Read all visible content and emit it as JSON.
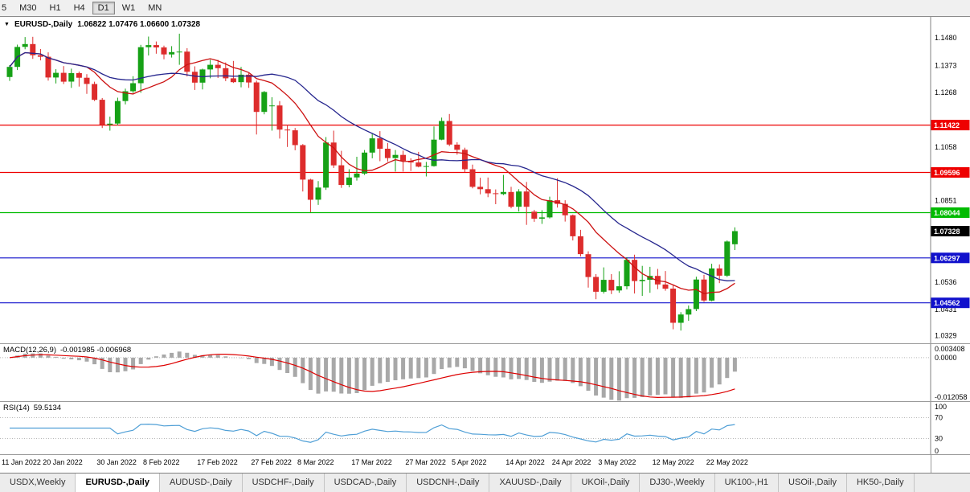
{
  "toolbar": {
    "timeframes": [
      {
        "label": "5",
        "active": false
      },
      {
        "label": "M30",
        "active": false
      },
      {
        "label": "H1",
        "active": false
      },
      {
        "label": "H4",
        "active": false
      },
      {
        "label": "D1",
        "active": true
      },
      {
        "label": "W1",
        "active": false
      },
      {
        "label": "MN",
        "active": false
      }
    ]
  },
  "chart": {
    "symbol_label": "EURUSD-,Daily",
    "ohlc_label": "1.06822 1.07476 1.06600 1.07328"
  },
  "indicators": {
    "macd": {
      "label": "MACD(12,26,9)",
      "values_label": "-0.001985 -0.006968"
    },
    "rsi": {
      "label": "RSI(14)",
      "value_label": "59.5134"
    }
  },
  "tabs": [
    {
      "label": "USDX,Weekly",
      "active": false
    },
    {
      "label": "EURUSD-,Daily",
      "active": true
    },
    {
      "label": "AUDUSD-,Daily",
      "active": false
    },
    {
      "label": "USDCHF-,Daily",
      "active": false
    },
    {
      "label": "USDCAD-,Daily",
      "active": false
    },
    {
      "label": "USDCNH-,Daily",
      "active": false
    },
    {
      "label": "XAUUSD-,Daily",
      "active": false
    },
    {
      "label": "UKOil-,Daily",
      "active": false
    },
    {
      "label": "DJ30-,Weekly",
      "active": false
    },
    {
      "label": "UK100-,H1",
      "active": false
    },
    {
      "label": "USOil-,Daily",
      "active": false
    },
    {
      "label": "HK50-,Daily",
      "active": false
    }
  ],
  "chart_data": {
    "type": "candlestick",
    "symbol": "EURUSD-",
    "timeframe": "Daily",
    "current_ohlc": {
      "open": 1.06822,
      "high": 1.07476,
      "low": 1.066,
      "close": 1.07328
    },
    "colors": {
      "bull": "#16a116",
      "bear": "#dd2c2c"
    },
    "y_axis": {
      "top": 1.156,
      "bottom": 1.03,
      "ticks": [
        {
          "value": 1.148,
          "label": "1.1480"
        },
        {
          "value": 1.1373,
          "label": "1.1373"
        },
        {
          "value": 1.1268,
          "label": "1.1268"
        },
        {
          "value": 1.1058,
          "label": "1.1058"
        },
        {
          "value": 1.0851,
          "label": "1.0851"
        },
        {
          "value": 1.0536,
          "label": "1.0536"
        },
        {
          "value": 1.0431,
          "label": "1.0431"
        },
        {
          "value": 1.0329,
          "label": "1.0329"
        }
      ]
    },
    "x_labels": [
      "11 Jan 2022",
      "20 Jan 2022",
      "30 Jan 2022",
      "8 Feb 2022",
      "17 Feb 2022",
      "27 Feb 2022",
      "8 Mar 2022",
      "17 Mar 2022",
      "27 Mar 2022",
      "5 Apr 2022",
      "14 Apr 2022",
      "24 Apr 2022",
      "3 May 2022",
      "12 May 2022",
      "22 May 2022"
    ],
    "x_label_indices": [
      0,
      7,
      14,
      20,
      27,
      34,
      40,
      47,
      54,
      60,
      67,
      73,
      79,
      86,
      93
    ],
    "h_lines": [
      {
        "value": 1.11422,
        "label": "1.11422",
        "color": "#ee0000"
      },
      {
        "value": 1.09596,
        "label": "1.09596",
        "color": "#ee0000"
      },
      {
        "value": 1.08044,
        "label": "1.08044",
        "color": "#00bb00"
      },
      {
        "value": 1.06297,
        "label": "1.06297",
        "color": "#1111cc"
      },
      {
        "value": 1.04562,
        "label": "1.04562",
        "color": "#1111cc"
      }
    ],
    "current_price": {
      "value": 1.07328,
      "label": "1.07328",
      "color": "#000000"
    },
    "moving_averages": [
      {
        "type": "sma",
        "period": 10,
        "color": "#cc1111"
      },
      {
        "type": "sma",
        "period": 21,
        "color": "#26268e"
      }
    ],
    "macd": {
      "fast": 12,
      "slow": 26,
      "signal": 9,
      "histogram_color": "#a8a8a8",
      "signal_color": "#dd0000",
      "scale": [
        {
          "value": 0.003408,
          "label": "0.003408"
        },
        {
          "value": 0,
          "label": "0.0000"
        },
        {
          "value": -0.012058,
          "label": "-0.012058"
        }
      ]
    },
    "rsi": {
      "period": 14,
      "color": "#4f9fd6",
      "levels": [
        70,
        30
      ],
      "scale": [
        {
          "value": 100,
          "label": "100"
        },
        {
          "value": 70,
          "label": "70"
        },
        {
          "value": 30,
          "label": "30"
        },
        {
          "value": 0,
          "label": "0"
        }
      ]
    },
    "ohlc": [
      [
        1.1328,
        1.1374,
        1.1313,
        1.1367
      ],
      [
        1.1367,
        1.1453,
        1.1355,
        1.1444
      ],
      [
        1.1444,
        1.1482,
        1.1435,
        1.1455
      ],
      [
        1.1455,
        1.1483,
        1.1398,
        1.1412
      ],
      [
        1.1412,
        1.1436,
        1.1392,
        1.1406
      ],
      [
        1.1406,
        1.1423,
        1.1314,
        1.1326
      ],
      [
        1.1326,
        1.1358,
        1.1303,
        1.1344
      ],
      [
        1.1344,
        1.137,
        1.1301,
        1.131
      ],
      [
        1.131,
        1.136,
        1.1286,
        1.1343
      ],
      [
        1.1343,
        1.1349,
        1.1291,
        1.1325
      ],
      [
        1.1325,
        1.1339,
        1.1263,
        1.1301
      ],
      [
        1.1301,
        1.131,
        1.1235,
        1.124
      ],
      [
        1.124,
        1.1247,
        1.1131,
        1.1144
      ],
      [
        1.1144,
        1.1175,
        1.1121,
        1.1148
      ],
      [
        1.1148,
        1.1248,
        1.1141,
        1.1235
      ],
      [
        1.1235,
        1.1283,
        1.1222,
        1.1273
      ],
      [
        1.1273,
        1.1331,
        1.1266,
        1.1304
      ],
      [
        1.1304,
        1.1452,
        1.1267,
        1.1443
      ],
      [
        1.1443,
        1.1484,
        1.1411,
        1.1451
      ],
      [
        1.1451,
        1.1465,
        1.1418,
        1.1442
      ],
      [
        1.1442,
        1.1449,
        1.1396,
        1.1415
      ],
      [
        1.1415,
        1.1447,
        1.1403,
        1.1424
      ],
      [
        1.1424,
        1.1495,
        1.1375,
        1.1426
      ],
      [
        1.1426,
        1.1439,
        1.133,
        1.1348
      ],
      [
        1.1348,
        1.1369,
        1.1278,
        1.1306
      ],
      [
        1.1306,
        1.136,
        1.128,
        1.1357
      ],
      [
        1.1357,
        1.1395,
        1.1323,
        1.1375
      ],
      [
        1.1375,
        1.1394,
        1.1324,
        1.1362
      ],
      [
        1.1362,
        1.1384,
        1.1312,
        1.1323
      ],
      [
        1.1323,
        1.139,
        1.1305,
        1.1308
      ],
      [
        1.1308,
        1.1367,
        1.1288,
        1.1337
      ],
      [
        1.1337,
        1.1343,
        1.1286,
        1.1307
      ],
      [
        1.1307,
        1.1314,
        1.1106,
        1.1193
      ],
      [
        1.1193,
        1.1274,
        1.1184,
        1.127
      ],
      [
        1.1216,
        1.125,
        1.1121,
        1.1218
      ],
      [
        1.1218,
        1.1235,
        1.109,
        1.1125
      ],
      [
        1.1125,
        1.1144,
        1.1058,
        1.1122
      ],
      [
        1.1122,
        1.1131,
        1.1045,
        1.1065
      ],
      [
        1.1065,
        1.1069,
        1.0886,
        1.0932
      ],
      [
        1.0932,
        1.0935,
        1.0806,
        1.0854
      ],
      [
        1.0854,
        1.0926,
        1.0834,
        1.0901
      ],
      [
        1.0901,
        1.1096,
        1.0892,
        1.1075
      ],
      [
        1.1075,
        1.1121,
        1.0977,
        1.0987
      ],
      [
        1.0987,
        1.1043,
        1.09,
        1.0911
      ],
      [
        1.0911,
        1.0972,
        1.0902,
        1.094
      ],
      [
        1.094,
        1.102,
        1.0928,
        1.0955
      ],
      [
        1.0955,
        1.1046,
        1.095,
        1.1036
      ],
      [
        1.1036,
        1.1109,
        1.1014,
        1.1091
      ],
      [
        1.1091,
        1.1119,
        1.1003,
        1.1051
      ],
      [
        1.1051,
        1.1073,
        1.1001,
        1.1015
      ],
      [
        1.1015,
        1.1046,
        1.0963,
        1.1027
      ],
      [
        1.1027,
        1.1044,
        1.0963,
        1.1004
      ],
      [
        1.1004,
        1.1014,
        1.0965,
        1.0998
      ],
      [
        1.0998,
        1.1039,
        1.0979,
        1.0982
      ],
      [
        1.0982,
        1.1,
        1.0944,
        1.0984
      ],
      [
        1.0984,
        1.1137,
        1.0982,
        1.1086
      ],
      [
        1.1086,
        1.1171,
        1.1084,
        1.1158
      ],
      [
        1.1158,
        1.1185,
        1.1061,
        1.1067
      ],
      [
        1.1067,
        1.1076,
        1.1028,
        1.1047
      ],
      [
        1.1047,
        1.1055,
        1.096,
        1.0972
      ],
      [
        1.0972,
        1.099,
        1.0898,
        1.0904
      ],
      [
        1.0904,
        1.0939,
        1.0875,
        1.0895
      ],
      [
        1.0895,
        1.094,
        1.0864,
        1.0879
      ],
      [
        1.0879,
        1.0894,
        1.0837,
        1.0876
      ],
      [
        1.0876,
        1.095,
        1.0872,
        1.0884
      ],
      [
        1.0884,
        1.0904,
        1.0821,
        1.0827
      ],
      [
        1.0827,
        1.0895,
        1.0809,
        1.0886
      ],
      [
        1.0886,
        1.0923,
        1.0757,
        1.0827
      ],
      [
        1.0808,
        1.0815,
        1.0769,
        1.0781
      ],
      [
        1.0781,
        1.0814,
        1.0761,
        1.0786
      ],
      [
        1.0786,
        1.0866,
        1.0782,
        1.0852
      ],
      [
        1.0852,
        1.0937,
        1.0824,
        1.0838
      ],
      [
        1.0838,
        1.0852,
        1.077,
        1.0794
      ],
      [
        1.0794,
        1.0797,
        1.0697,
        1.0713
      ],
      [
        1.0713,
        1.0738,
        1.0635,
        1.0644
      ],
      [
        1.0644,
        1.0655,
        1.0515,
        1.0556
      ],
      [
        1.0556,
        1.0567,
        1.047,
        1.0499
      ],
      [
        1.0499,
        1.0593,
        1.0492,
        1.0545
      ],
      [
        1.0545,
        1.0567,
        1.049,
        1.0504
      ],
      [
        1.0504,
        1.0578,
        1.0495,
        1.052
      ],
      [
        1.052,
        1.0632,
        1.0508,
        1.0622
      ],
      [
        1.0622,
        1.0642,
        1.0492,
        1.054
      ],
      [
        1.054,
        1.0599,
        1.0483,
        1.0545
      ],
      [
        1.0545,
        1.0595,
        1.0495,
        1.056
      ],
      [
        1.056,
        1.0587,
        1.0509,
        1.0527
      ],
      [
        1.0527,
        1.0579,
        1.0503,
        1.0511
      ],
      [
        1.0511,
        1.0526,
        1.0354,
        1.0379
      ],
      [
        1.0379,
        1.042,
        1.0349,
        1.0411
      ],
      [
        1.0411,
        1.0446,
        1.0387,
        1.0432
      ],
      [
        1.0432,
        1.0557,
        1.0424,
        1.0546
      ],
      [
        1.0546,
        1.0564,
        1.0459,
        1.0465
      ],
      [
        1.0465,
        1.0607,
        1.0462,
        1.0589
      ],
      [
        1.0589,
        1.0604,
        1.0532,
        1.0561
      ],
      [
        1.0561,
        1.0697,
        1.0556,
        1.0693
      ],
      [
        1.06822,
        1.07476,
        1.066,
        1.07328
      ]
    ]
  }
}
